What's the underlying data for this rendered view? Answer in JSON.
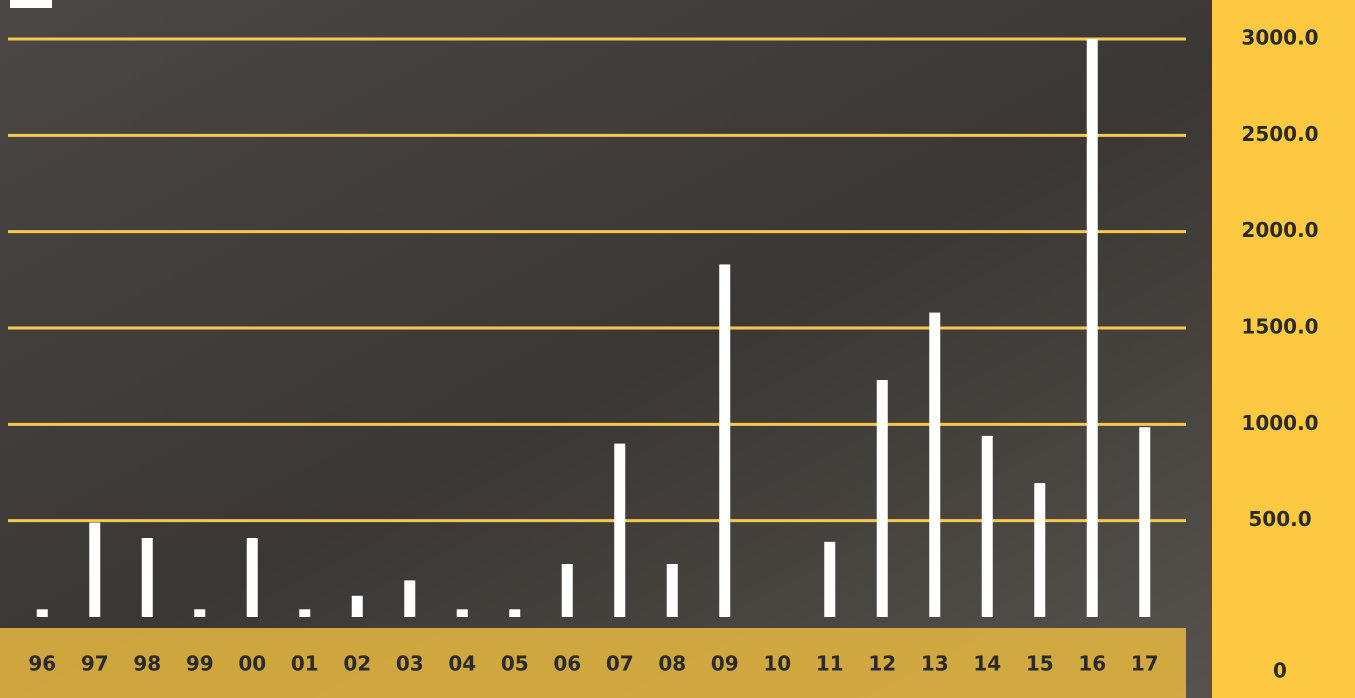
{
  "chart_data": {
    "type": "bar",
    "categories": [
      "96",
      "97",
      "98",
      "99",
      "00",
      "01",
      "02",
      "03",
      "04",
      "05",
      "06",
      "07",
      "08",
      "09",
      "10",
      "11",
      "12",
      "13",
      "14",
      "15",
      "16",
      "17"
    ],
    "values": [
      40,
      490,
      410,
      40,
      410,
      40,
      110,
      190,
      40,
      40,
      275,
      900,
      275,
      1830,
      0,
      390,
      1230,
      1580,
      940,
      695,
      3000,
      985
    ],
    "color": "#ffffff",
    "ylim": [
      0,
      3000
    ],
    "yticks": [
      0,
      {
        "value": 500,
        "label": "500.0"
      },
      {
        "value": 1000,
        "label": "1000.0"
      },
      {
        "value": 1500,
        "label": "1500.0"
      },
      {
        "value": 2000,
        "label": "2000.0"
      },
      {
        "value": 2500,
        "label": "2500.0"
      },
      {
        "value": 3000,
        "label": "3000.0"
      }
    ],
    "grid": true,
    "grid_color": "#f6c850"
  }
}
